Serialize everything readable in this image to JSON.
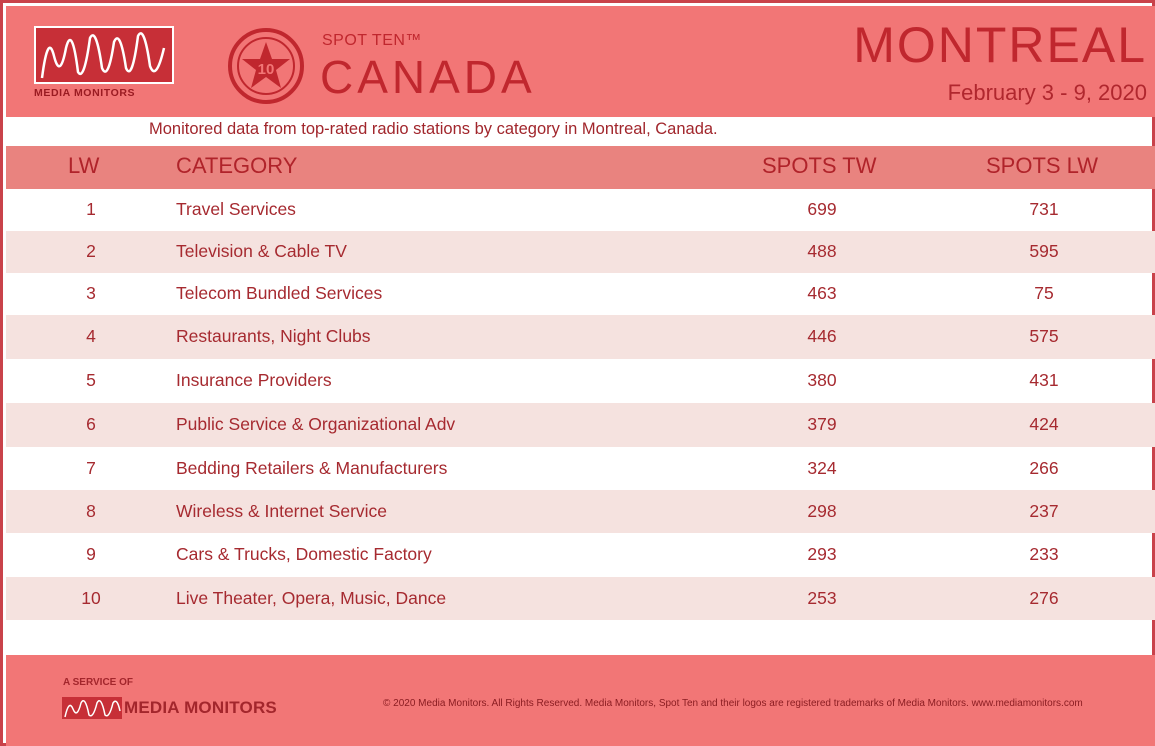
{
  "header": {
    "brand": "MEDIA MONITORS",
    "spot_ten": "SPOT TEN™",
    "badge_number": "10",
    "country": "CANADA",
    "city": "MONTREAL",
    "date_range": "February 3 - 9, 2020"
  },
  "subtitle": "Monitored data from top-rated radio stations by category in Montreal, Canada.",
  "table": {
    "columns": [
      "LW",
      "CATEGORY",
      "SPOTS TW",
      "SPOTS LW"
    ]
  },
  "footer": {
    "service_of": "A SERVICE OF",
    "brand": "MEDIA MONITORS",
    "copyright": "© 2020 Media Monitors. All Rights Reserved. Media Monitors, Spot Ten and their logos are registered trademarks of Media Monitors. www.mediamonitors.com"
  },
  "colors": {
    "header_bg": "#f27676",
    "header_row_bg": "#e9837f",
    "alt_row_bg": "#f5e2df",
    "text_red": "#a62a30"
  },
  "chart_data": {
    "type": "table",
    "columns": [
      "LW",
      "CATEGORY",
      "SPOTS TW",
      "SPOTS LW"
    ],
    "rows": [
      {
        "lw": "1",
        "category": "Travel Services",
        "spots_tw": 699,
        "spots_lw": 731
      },
      {
        "lw": "2",
        "category": "Television & Cable TV",
        "spots_tw": 488,
        "spots_lw": 595
      },
      {
        "lw": "3",
        "category": "Telecom Bundled Services",
        "spots_tw": 463,
        "spots_lw": 75
      },
      {
        "lw": "4",
        "category": "Restaurants, Night Clubs",
        "spots_tw": 446,
        "spots_lw": 575
      },
      {
        "lw": "5",
        "category": "Insurance Providers",
        "spots_tw": 380,
        "spots_lw": 431
      },
      {
        "lw": "6",
        "category": "Public Service & Organizational Adv",
        "spots_tw": 379,
        "spots_lw": 424
      },
      {
        "lw": "7",
        "category": "Bedding Retailers & Manufacturers",
        "spots_tw": 324,
        "spots_lw": 266
      },
      {
        "lw": "8",
        "category": "Wireless & Internet Service",
        "spots_tw": 298,
        "spots_lw": 237
      },
      {
        "lw": "9",
        "category": "Cars & Trucks, Domestic Factory",
        "spots_tw": 293,
        "spots_lw": 233
      },
      {
        "lw": "10",
        "category": "Live Theater, Opera, Music, Dance",
        "spots_tw": 253,
        "spots_lw": 276
      }
    ]
  }
}
